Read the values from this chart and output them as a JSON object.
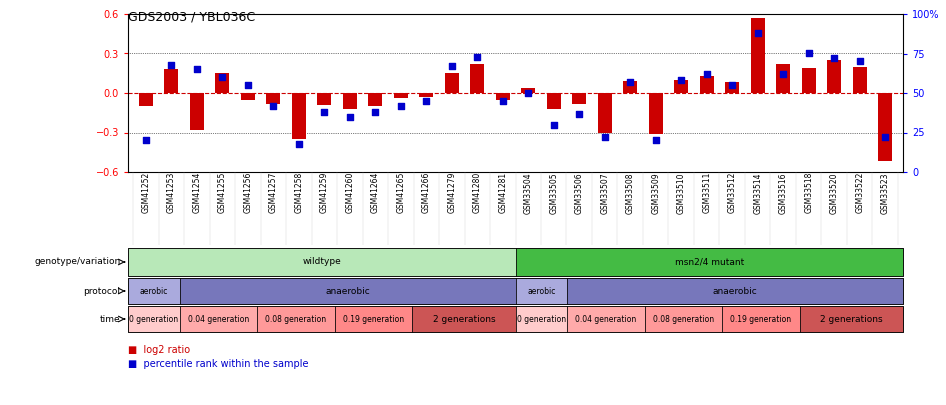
{
  "title": "GDS2003 / YBL036C",
  "samples": [
    "GSM41252",
    "GSM41253",
    "GSM41254",
    "GSM41255",
    "GSM41256",
    "GSM41257",
    "GSM41258",
    "GSM41259",
    "GSM41260",
    "GSM41264",
    "GSM41265",
    "GSM41266",
    "GSM41279",
    "GSM41280",
    "GSM41281",
    "GSM33504",
    "GSM33505",
    "GSM33506",
    "GSM33507",
    "GSM33508",
    "GSM33509",
    "GSM33510",
    "GSM33511",
    "GSM33512",
    "GSM33514",
    "GSM33516",
    "GSM33518",
    "GSM33520",
    "GSM33522",
    "GSM33523"
  ],
  "log2_ratio": [
    -0.1,
    0.18,
    -0.28,
    0.15,
    -0.05,
    -0.08,
    -0.35,
    -0.09,
    -0.12,
    -0.1,
    -0.04,
    -0.03,
    0.15,
    0.22,
    -0.05,
    0.04,
    -0.12,
    -0.08,
    -0.3,
    0.09,
    -0.31,
    0.1,
    0.13,
    0.08,
    0.57,
    0.22,
    0.19,
    0.25,
    0.2,
    -0.52
  ],
  "percentile": [
    20,
    68,
    65,
    60,
    55,
    42,
    18,
    38,
    35,
    38,
    42,
    45,
    67,
    73,
    45,
    50,
    30,
    37,
    22,
    57,
    20,
    58,
    62,
    55,
    88,
    62,
    75,
    72,
    70,
    22
  ],
  "bar_color": "#cc0000",
  "dot_color": "#0000cc",
  "ylim_left": [
    -0.6,
    0.6
  ],
  "ylim_right": [
    0,
    100
  ],
  "yticks_left": [
    -0.6,
    -0.3,
    0.0,
    0.3,
    0.6
  ],
  "yticks_right": [
    0,
    25,
    50,
    75,
    100
  ],
  "genotype_regions": [
    {
      "start": 0,
      "end": 15,
      "color": "#b8e8b8",
      "label": "wildtype"
    },
    {
      "start": 15,
      "end": 30,
      "color": "#44bb44",
      "label": "msn2/4 mutant"
    }
  ],
  "protocol_regions": [
    {
      "start": 0,
      "end": 2,
      "color": "#aaaadd",
      "label": "aerobic"
    },
    {
      "start": 2,
      "end": 15,
      "color": "#7777bb",
      "label": "anaerobic"
    },
    {
      "start": 15,
      "end": 17,
      "color": "#aaaadd",
      "label": "aerobic"
    },
    {
      "start": 17,
      "end": 30,
      "color": "#7777bb",
      "label": "anaerobic"
    }
  ],
  "time_regions": [
    {
      "start": 0,
      "end": 2,
      "label": "0 generation",
      "color": "#ffcccc"
    },
    {
      "start": 2,
      "end": 5,
      "label": "0.04 generation",
      "color": "#ffaaaa"
    },
    {
      "start": 5,
      "end": 8,
      "label": "0.08 generation",
      "color": "#ff9999"
    },
    {
      "start": 8,
      "end": 11,
      "label": "0.19 generation",
      "color": "#ff8888"
    },
    {
      "start": 11,
      "end": 15,
      "label": "2 generations",
      "color": "#cc5555"
    },
    {
      "start": 15,
      "end": 17,
      "label": "0 generation",
      "color": "#ffcccc"
    },
    {
      "start": 17,
      "end": 20,
      "label": "0.04 generation",
      "color": "#ffaaaa"
    },
    {
      "start": 20,
      "end": 23,
      "label": "0.08 generation",
      "color": "#ff9999"
    },
    {
      "start": 23,
      "end": 26,
      "label": "0.19 generation",
      "color": "#ff8888"
    },
    {
      "start": 26,
      "end": 30,
      "label": "2 generations",
      "color": "#cc5555"
    }
  ],
  "legend_items": [
    {
      "color": "#cc0000",
      "label": "log2 ratio"
    },
    {
      "color": "#0000cc",
      "label": "percentile rank within the sample"
    }
  ],
  "row_labels": [
    "genotype/variation",
    "protocol",
    "time"
  ],
  "background": "#ffffff"
}
